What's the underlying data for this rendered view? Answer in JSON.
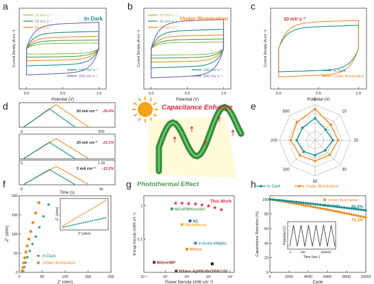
{
  "colors": {
    "teal": "#1a8f8f",
    "orange": "#f08a22",
    "purple": "#7360b5",
    "green": "#4f9c57",
    "greenlt": "#8bc34a",
    "red": "#d9283a",
    "black": "#222222",
    "axis": "#555555",
    "gold": "#f2b01e"
  },
  "panel_letters": [
    "a",
    "b",
    "c",
    "d",
    "e",
    "f",
    "g",
    "h"
  ],
  "center": {
    "title": "Capacitance Enhance",
    "subtitle": "Photothermal Effect"
  },
  "chart_data": [
    {
      "id": "a",
      "type": "line",
      "xlabel": "Potential (V)",
      "ylabel": "Current Density (A cm⁻²)",
      "xlim": [
        -0.1,
        1.1
      ],
      "ylim": [
        -0.8,
        0.8
      ],
      "xticks": [
        "0.0",
        "0.5",
        "1.0"
      ],
      "title": "In Dark",
      "series": [
        {
          "name": "10 mV s⁻¹",
          "color": "#8bc34a",
          "amp": 0.11
        },
        {
          "name": "20 mV s⁻¹",
          "color": "#4f9c57",
          "amp": 0.17
        },
        {
          "name": "50 mV s⁻¹",
          "color": "#f08a22",
          "amp": 0.24
        },
        {
          "name": "100 mV s⁻¹",
          "color": "#1a8f8f",
          "amp": 0.34
        },
        {
          "name": "200 mV s⁻¹",
          "color": "#7360b5",
          "amp": 0.52
        }
      ]
    },
    {
      "id": "b",
      "type": "line",
      "xlabel": "Potential (V)",
      "ylabel": "Current Density (A cm⁻²)",
      "xlim": [
        -0.1,
        1.1
      ],
      "ylim": [
        -0.8,
        0.8
      ],
      "xticks": [
        "0.0",
        "0.5",
        "1.0"
      ],
      "title": "Under Illumination",
      "series": [
        {
          "name": "10 mV s⁻¹",
          "color": "#8bc34a",
          "amp": 0.13
        },
        {
          "name": "20 mV s⁻¹",
          "color": "#4f9c57",
          "amp": 0.19
        },
        {
          "name": "50 mV s⁻¹",
          "color": "#f08a22",
          "amp": 0.27
        },
        {
          "name": "100 mV s⁻¹",
          "color": "#1a8f8f",
          "amp": 0.38
        },
        {
          "name": "200 mV s⁻¹",
          "color": "#7360b5",
          "amp": 0.58
        }
      ]
    },
    {
      "id": "c",
      "type": "line",
      "xlabel": "Potential (V)",
      "ylabel": "Current Density (A cm⁻²)",
      "xlim": [
        -0.1,
        1.1
      ],
      "ylim": [
        -0.8,
        0.8
      ],
      "xticks": [
        "0.0",
        "0.5",
        "1.0"
      ],
      "annotation": "10 mV s⁻¹",
      "series": [
        {
          "name": "In Dark",
          "color": "#1a8f8f",
          "amp": 0.46
        },
        {
          "name": "Under Illumination",
          "color": "#f08a22",
          "amp": 0.56
        }
      ]
    },
    {
      "id": "d",
      "type": "line",
      "xlabel": "Time (s)",
      "rows": [
        {
          "label": "50 mA cm⁻²",
          "pct": "-26.4%",
          "xmax": "300",
          "dark_peak": 0.55,
          "ill_peak": 0.72
        },
        {
          "label": "20 mA cm⁻²",
          "pct": "-21.1%",
          "xmax": "1.2k",
          "dark_peak": 0.47,
          "ill_peak": 0.62
        },
        {
          "label": "5 mA cm⁻²",
          "pct": "-12.2%",
          "xmax": "6k",
          "dark_peak": 0.42,
          "ill_peak": 0.55
        }
      ],
      "zero": "0"
    },
    {
      "id": "e",
      "type": "radar",
      "axes": [
        "5",
        "10",
        "20",
        "30",
        "50",
        "100",
        "200",
        "500"
      ],
      "series": [
        {
          "name": "In Dark",
          "color": "#1a8f8f",
          "values": [
            0.62,
            0.42,
            0.5,
            0.4,
            0.42,
            0.45,
            0.52,
            0.5
          ]
        },
        {
          "name": "Under Illumination",
          "color": "#f08a22",
          "values": [
            0.88,
            0.62,
            0.65,
            0.58,
            0.58,
            0.6,
            0.68,
            0.72
          ]
        }
      ]
    },
    {
      "id": "f",
      "type": "scatter",
      "xlabel": "Z' (ohm)",
      "ylabel": "-Z\" (ohm)",
      "xlim": [
        0,
        200
      ],
      "ylim": [
        0,
        200
      ],
      "xticks": [
        0,
        50,
        100,
        150,
        200
      ],
      "yticks": [
        0,
        50,
        100,
        150,
        200
      ],
      "inset": {
        "xlabel": "Z' (ohm)",
        "ylabel": "-Z\" (ohm)"
      },
      "series": [
        {
          "name": "In Dark",
          "color": "#1a8f8f",
          "marker": "star",
          "x": [
            9,
            11,
            14,
            18,
            23,
            29,
            36,
            44,
            53,
            64
          ],
          "y": [
            4,
            14,
            26,
            40,
            56,
            74,
            94,
            118,
            146,
            178
          ]
        },
        {
          "name": "Under Illumination",
          "color": "#f08a22",
          "marker": "circle",
          "x": [
            7,
            8.5,
            10,
            12,
            14.5,
            17.5,
            21,
            25,
            30,
            36,
            43
          ],
          "y": [
            4,
            13,
            25,
            38,
            53,
            69,
            87,
            107,
            130,
            155,
            182
          ]
        }
      ]
    },
    {
      "id": "g",
      "type": "scatter",
      "xlabel": "Power Density (mW cm⁻²)",
      "ylabel": "Energy Density (mWh cm⁻²)",
      "xticks": [
        "10⁻¹",
        "10⁰",
        "10¹",
        "10²",
        "10³"
      ],
      "yticks": [
        "1",
        "0.1"
      ],
      "this_work_label": "This Work",
      "this_work": [
        [
          3,
          1.2
        ],
        [
          6,
          1.18
        ],
        [
          12,
          1.15
        ],
        [
          25,
          1.12
        ],
        [
          50,
          1.05
        ],
        [
          100,
          0.98
        ],
        [
          200,
          0.88
        ],
        [
          400,
          0.75
        ]
      ],
      "references": [
        {
          "name": "NiCoP/MXene/AC",
          "color": "#4f9c57",
          "x": 2,
          "y": 0.8
        },
        {
          "name": "PANI/MXene",
          "color": "#f2b01e",
          "x": 6,
          "y": 0.27
        },
        {
          "name": "AC",
          "color": "#2a57a8",
          "x": 14,
          "y": 0.35
        },
        {
          "name": "V₂O₅//G-VNQDs",
          "color": "#2a8aa8",
          "x": 25,
          "y": 0.075
        },
        {
          "name": "MXene",
          "color": "#f08a22",
          "x": 10,
          "y": 0.05
        },
        {
          "name": "MXene/BP",
          "color": "#8b1d2a",
          "x": 0.3,
          "y": 0.02
        },
        {
          "name": "MXene-AgNW-MnONW-C60",
          "color": "#6a3d2a",
          "x": 3.2,
          "y": 0.011
        },
        {
          "name": "",
          "color": "#111111",
          "x": 150,
          "y": 0.018
        }
      ]
    },
    {
      "id": "h",
      "type": "scatter",
      "xlabel": "Cycle",
      "ylabel": "Capacitance Retention (%)",
      "xlim": [
        0,
        10000
      ],
      "ylim": [
        0,
        105
      ],
      "xticks": [
        0,
        2000,
        4000,
        6000,
        8000,
        10000
      ],
      "yticks": [
        0,
        20,
        40,
        60,
        80,
        100
      ],
      "inset": {
        "xlabel": "Time (sec.)",
        "ylabel": "Potential (V)",
        "xticks": [
          "0",
          "100",
          "500000"
        ]
      },
      "series": [
        {
          "name": "Under Illumination",
          "color": "#f08a22",
          "end": 75.3,
          "label": "75.3%"
        },
        {
          "name": "In Dark",
          "color": "#1a8f8f",
          "end": 85.0,
          "label": "85.0%"
        }
      ]
    }
  ]
}
